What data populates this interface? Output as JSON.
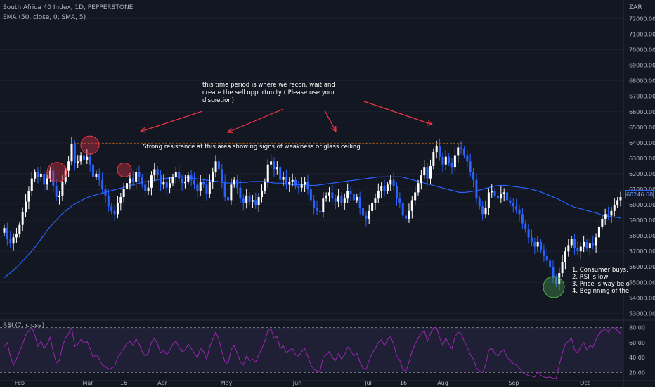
{
  "header": {
    "symbol": "South Africa 40 Index, 1D, PEPPERSTONE",
    "indicator": "EMA (50, close, 0, SMA, 5)",
    "rsi_label": "RSI (7, close)",
    "currency": "ZAR",
    "last_price": "60246.60"
  },
  "annotations": {
    "period_note": "this time period is where we recon, wait and create the sell opportunity ( Please use your discretion)",
    "resistance_note": "Strong resistance at this area showing signs of weakness or glass ceiling",
    "list": [
      "1. Consumer buys,",
      "2. RSI is low",
      "3. Price is way belo",
      "4. Beginning of the"
    ]
  },
  "colors": {
    "background": "#131722",
    "up_candle": "#ffffff",
    "down_candle": "#2962ff",
    "ema_line": "#2962ff",
    "rsi_line": "#9c27b0",
    "rsi_band": "#7e57c2",
    "resistance_line": "#f57c00",
    "arrow": "#f23645",
    "circle_red": "#f23645",
    "circle_green": "#4caf50"
  },
  "chart_data": {
    "type": "candlestick",
    "x_labels": [
      "Feb",
      "Mar",
      "16",
      "Apr",
      "May",
      "Jun",
      "Jul",
      "16",
      "Aug",
      "Sep",
      "Oct"
    ],
    "y_ticks": [
      53000,
      54000,
      55000,
      56000,
      57000,
      58000,
      59000,
      60000,
      61000,
      62000,
      63000,
      64000,
      65000,
      66000,
      67000,
      68000,
      69000,
      70000,
      71000,
      72000
    ],
    "ylim": [
      52700,
      73200
    ],
    "resistance_level": 63950,
    "price_closes": [
      58500,
      57800,
      57500,
      57900,
      58100,
      58700,
      59500,
      60200,
      60900,
      61700,
      62100,
      61800,
      62000,
      61300,
      61700,
      62200,
      61200,
      60500,
      60600,
      61500,
      62200,
      62800,
      63900,
      62700,
      62800,
      63200,
      62900,
      63100,
      62600,
      61800,
      62000,
      61600,
      61000,
      60600,
      59900,
      59600,
      59400,
      60100,
      60500,
      61000,
      61400,
      61700,
      61500,
      62100,
      61800,
      61300,
      60900,
      61100,
      61900,
      62300,
      61900,
      61300,
      61500,
      61100,
      61400,
      61800,
      62100,
      61700,
      61400,
      61500,
      61900,
      61600,
      61300,
      60900,
      61500,
      61300,
      60700,
      61500,
      62100,
      62800,
      62300,
      61500,
      60500,
      60300,
      61300,
      61600,
      61100,
      60400,
      60100,
      60600,
      60200,
      60300,
      60000,
      60500,
      60900,
      61500,
      62600,
      62800,
      62300,
      62400,
      61600,
      61800,
      61300,
      61500,
      61600,
      61200,
      61100,
      61300,
      61500,
      61000,
      60300,
      59800,
      59600,
      59500,
      60400,
      60600,
      60800,
      60400,
      60200,
      60600,
      60100,
      60400,
      60900,
      60700,
      60300,
      60500,
      59800,
      59300,
      59100,
      59600,
      60100,
      60400,
      60900,
      61200,
      60900,
      61300,
      61600,
      61200,
      60400,
      60100,
      59300,
      59100,
      59600,
      60300,
      60800,
      61400,
      61900,
      62400,
      61700,
      62500,
      63400,
      63800,
      63100,
      62600,
      63100,
      62700,
      62400,
      63200,
      63700,
      63600,
      63200,
      62800,
      62100,
      61600,
      60400,
      59900,
      59400,
      59800,
      60800,
      60900,
      60600,
      60400,
      60700,
      60800,
      60300,
      60100,
      59900,
      59700,
      59400,
      58800,
      58400,
      57900,
      57600,
      57300,
      57600,
      57100,
      56700,
      56400,
      56000,
      55300,
      54900,
      55600,
      56300,
      57000,
      57400,
      57800,
      57200,
      57000,
      57300,
      57600,
      57200,
      57500,
      57400,
      57900,
      58600,
      59100,
      59400,
      59300,
      59600,
      60000,
      60300,
      60500
    ],
    "ema_values": [
      55300,
      55600,
      55900,
      56300,
      56700,
      57100,
      57600,
      58100,
      58600,
      59000,
      59400,
      59700,
      60000,
      60200,
      60400,
      60550,
      60650,
      60750,
      60850,
      60950,
      61050,
      61150,
      61250,
      61350,
      61450,
      61500,
      61550,
      61650,
      61700,
      61750,
      61800,
      61800,
      61750,
      61700,
      61650,
      61600,
      61550,
      61500,
      61450,
      61400,
      61400,
      61450,
      61450,
      61500,
      61500,
      61500,
      61450,
      61400,
      61400,
      61350,
      61300,
      61300,
      61300,
      61250,
      61250,
      61300,
      61350,
      61400,
      61450,
      61500,
      61550,
      61600,
      61650,
      61700,
      61750,
      61800,
      61800,
      61800,
      61800,
      61800,
      61700,
      61600,
      61500,
      61400,
      61300,
      61200,
      61100,
      61000,
      60900,
      60800,
      60800,
      60850,
      60900,
      61000,
      61100,
      61200,
      61250,
      61250,
      61200,
      61150,
      61100,
      61050,
      60950,
      60850,
      60700,
      60550,
      60400,
      60200,
      60000,
      59850,
      59750,
      59650,
      59550,
      59450,
      59300,
      59250,
      59200,
      59150
    ],
    "rsi": {
      "ylim": [
        10,
        90
      ],
      "upper_band": 80,
      "lower_band": 20,
      "y_ticks": [
        20,
        40,
        60,
        80
      ],
      "values": [
        55,
        60,
        42,
        30,
        38,
        48,
        58,
        70,
        76,
        80,
        70,
        55,
        62,
        52,
        58,
        67,
        48,
        33,
        36,
        55,
        66,
        72,
        80,
        55,
        58,
        64,
        59,
        62,
        52,
        40,
        44,
        38,
        30,
        28,
        24,
        26,
        28,
        40,
        46,
        52,
        58,
        62,
        56,
        65,
        58,
        48,
        42,
        46,
        60,
        66,
        58,
        46,
        50,
        44,
        50,
        58,
        62,
        54,
        48,
        50,
        58,
        52,
        46,
        40,
        52,
        48,
        38,
        54,
        64,
        74,
        64,
        48,
        34,
        32,
        50,
        56,
        46,
        34,
        30,
        42,
        36,
        38,
        34,
        44,
        52,
        62,
        76,
        78,
        66,
        68,
        52,
        56,
        46,
        50,
        52,
        44,
        42,
        48,
        52,
        42,
        30,
        24,
        22,
        22,
        40,
        44,
        48,
        40,
        36,
        46,
        38,
        44,
        54,
        50,
        42,
        46,
        34,
        26,
        24,
        36,
        46,
        52,
        60,
        64,
        56,
        64,
        68,
        58,
        42,
        36,
        24,
        22,
        34,
        48,
        58,
        66,
        72,
        76,
        62,
        72,
        80,
        80,
        66,
        56,
        66,
        58,
        52,
        68,
        74,
        72,
        62,
        54,
        44,
        38,
        26,
        22,
        20,
        30,
        50,
        52,
        46,
        42,
        48,
        50,
        40,
        36,
        32,
        30,
        26,
        20,
        18,
        16,
        15,
        14,
        22,
        16,
        14,
        13,
        14,
        12,
        12,
        30,
        46,
        58,
        62,
        66,
        50,
        46,
        54,
        60,
        50,
        56,
        54,
        64,
        72,
        76,
        78,
        74,
        80,
        80,
        76,
        72
      ]
    }
  }
}
